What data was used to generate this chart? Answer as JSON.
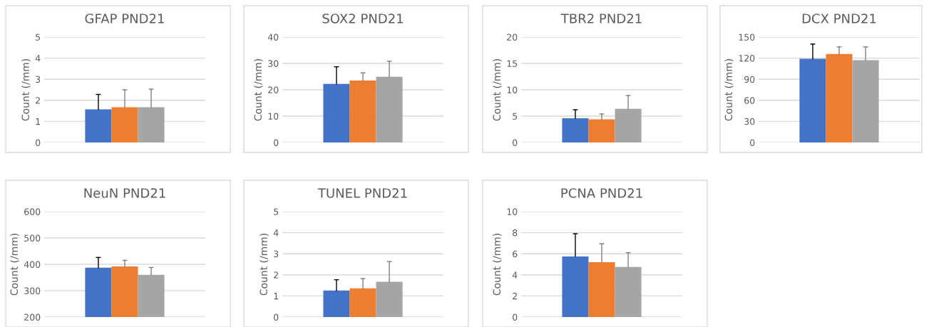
{
  "chart_data": [
    {
      "type": "bar",
      "title": "GFAP PND21",
      "ylabel": "Count (/mm)",
      "categories": [
        null
      ],
      "ylim": [
        0,
        5
      ],
      "yticks": [
        0,
        1,
        2,
        3,
        4,
        5
      ],
      "grid": "y",
      "series": [
        {
          "color": "#4472c4",
          "values": [
            1.57
          ],
          "errors": [
            [
              1.57,
              2.28
            ]
          ]
        },
        {
          "color": "#ed7d31",
          "values": [
            1.67
          ],
          "errors": [
            [
              1.67,
              2.5
            ]
          ]
        },
        {
          "color": "#a5a5a5",
          "values": [
            1.67
          ],
          "errors": [
            [
              1.67,
              2.53
            ]
          ]
        }
      ]
    },
    {
      "type": "bar",
      "title": "SOX2 PND21",
      "ylabel": "Count (/mm)",
      "categories": [
        null
      ],
      "ylim": [
        0,
        40
      ],
      "yticks": [
        0,
        10,
        20,
        30,
        40
      ],
      "grid": "y",
      "series": [
        {
          "color": "#4472c4",
          "values": [
            22.2
          ],
          "errors": [
            [
              22.2,
              28.7
            ]
          ]
        },
        {
          "color": "#ed7d31",
          "values": [
            23.5
          ],
          "errors": [
            [
              23.5,
              26.4
            ]
          ]
        },
        {
          "color": "#a5a5a5",
          "values": [
            24.9
          ],
          "errors": [
            [
              24.9,
              30.8
            ]
          ]
        }
      ]
    },
    {
      "type": "bar",
      "title": "TBR2 PND21",
      "ylabel": "Count (/mm)",
      "categories": [
        null
      ],
      "ylim": [
        0,
        20
      ],
      "yticks": [
        0,
        5,
        10,
        15,
        20
      ],
      "grid": "y",
      "series": [
        {
          "color": "#4472c4",
          "values": [
            4.6
          ],
          "errors": [
            [
              4.6,
              6.2
            ]
          ]
        },
        {
          "color": "#ed7d31",
          "values": [
            4.4
          ],
          "errors": [
            [
              4.4,
              5.4
            ]
          ]
        },
        {
          "color": "#a5a5a5",
          "values": [
            6.4
          ],
          "errors": [
            [
              6.4,
              8.9
            ]
          ]
        }
      ]
    },
    {
      "type": "bar",
      "title": "DCX PND21",
      "ylabel": "Count (/mm)",
      "categories": [
        null
      ],
      "ylim": [
        0,
        150
      ],
      "yticks": [
        0,
        30,
        60,
        90,
        120,
        150
      ],
      "grid": "y",
      "series": [
        {
          "color": "#4472c4",
          "values": [
            119
          ],
          "errors": [
            [
              119,
              140
            ]
          ]
        },
        {
          "color": "#ed7d31",
          "values": [
            126
          ],
          "errors": [
            [
              126,
              136
            ]
          ]
        },
        {
          "color": "#a5a5a5",
          "values": [
            117
          ],
          "errors": [
            [
              117,
              136
            ]
          ]
        }
      ]
    },
    {
      "type": "bar",
      "title": "NeuN PND21",
      "ylabel": "Count (/mm)",
      "categories": [
        null
      ],
      "ylim": [
        200,
        600
      ],
      "yticks": [
        200,
        300,
        400,
        500,
        600
      ],
      "grid": "y",
      "series": [
        {
          "color": "#4472c4",
          "values": [
            387
          ],
          "errors": [
            [
              387,
              426
            ]
          ]
        },
        {
          "color": "#ed7d31",
          "values": [
            392
          ],
          "errors": [
            [
              392,
              415
            ]
          ]
        },
        {
          "color": "#a5a5a5",
          "values": [
            360
          ],
          "errors": [
            [
              360,
              388
            ]
          ]
        }
      ]
    },
    {
      "type": "bar",
      "title": "TUNEL PND21",
      "ylabel": "Count (/mm)",
      "categories": [
        null
      ],
      "ylim": [
        0,
        5
      ],
      "yticks": [
        0,
        1,
        2,
        3,
        4,
        5
      ],
      "grid": "y",
      "series": [
        {
          "color": "#4472c4",
          "values": [
            1.26
          ],
          "errors": [
            [
              1.26,
              1.77
            ]
          ]
        },
        {
          "color": "#ed7d31",
          "values": [
            1.36
          ],
          "errors": [
            [
              1.36,
              1.82
            ]
          ]
        },
        {
          "color": "#a5a5a5",
          "values": [
            1.67
          ],
          "errors": [
            [
              1.67,
              2.63
            ]
          ]
        }
      ]
    },
    {
      "type": "bar",
      "title": "PCNA PND21",
      "ylabel": "Count (/mm)",
      "categories": [
        null
      ],
      "ylim": [
        0,
        10
      ],
      "yticks": [
        0,
        2,
        4,
        6,
        8,
        10
      ],
      "grid": "y",
      "series": [
        {
          "color": "#4472c4",
          "values": [
            5.75
          ],
          "errors": [
            [
              5.75,
              7.9
            ]
          ]
        },
        {
          "color": "#ed7d31",
          "values": [
            5.2
          ],
          "errors": [
            [
              5.2,
              6.95
            ]
          ]
        },
        {
          "color": "#a5a5a5",
          "values": [
            4.75
          ],
          "errors": [
            [
              4.75,
              6.1
            ]
          ]
        }
      ]
    }
  ]
}
